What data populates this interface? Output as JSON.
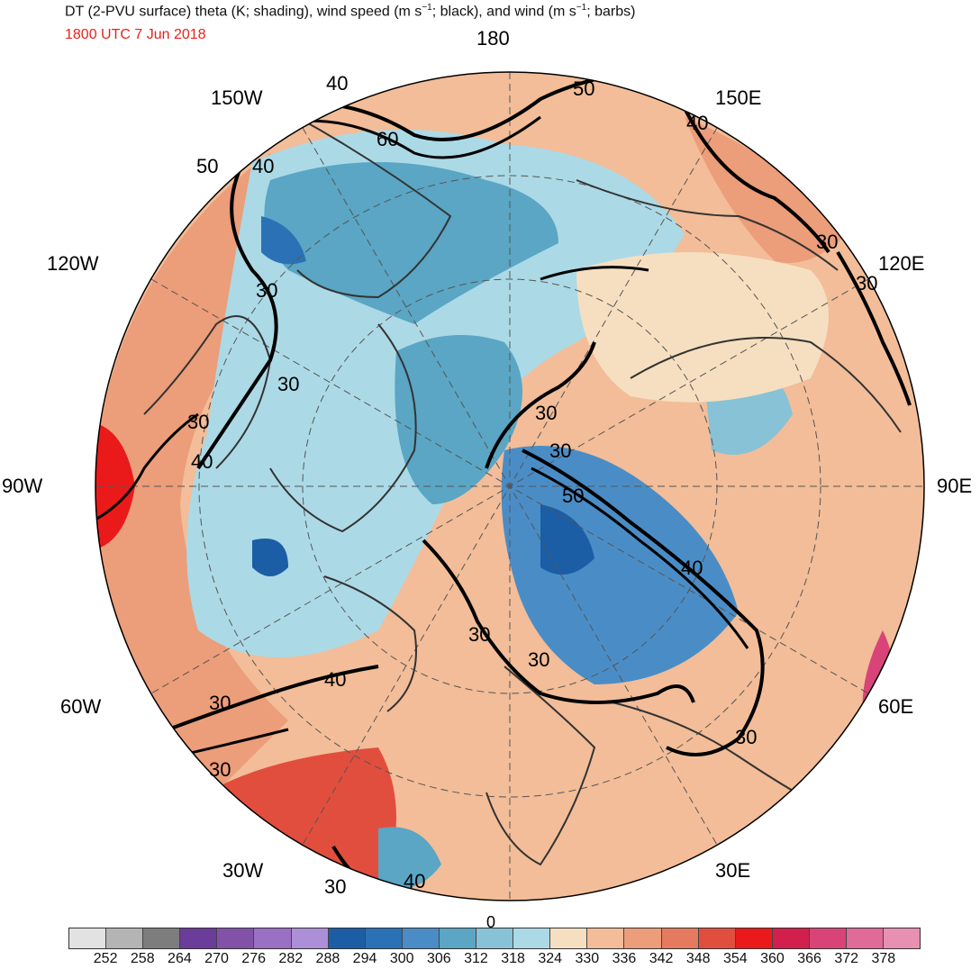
{
  "header": {
    "title_main": "DT (2-PVU surface) theta (K; shading), wind speed (m s",
    "title_exp1": "−1",
    "title_mid": "; black), and wind (m s",
    "title_exp2": "−1",
    "title_end": "; barbs)",
    "valid_time": "1800 UTC 7 Jun 2018",
    "valid_time_color": "#e8231a"
  },
  "map": {
    "projection": "north-polar-stereographic",
    "longitude_labels": [
      "180",
      "150E",
      "120E",
      "90E",
      "60E",
      "30E",
      "0",
      "30W",
      "60W",
      "90W",
      "120W",
      "150W"
    ],
    "contour_labels": [
      "40",
      "50",
      "60",
      "50",
      "40",
      "40",
      "30",
      "30",
      "30",
      "30",
      "40",
      "30",
      "30",
      "30",
      "50",
      "40",
      "30",
      "30",
      "40",
      "30",
      "30",
      "40",
      "30",
      "30",
      "30",
      "40"
    ],
    "colors": {
      "contour": "#000000",
      "coastline": "#333333",
      "grid": "#555555"
    }
  },
  "colorbar": {
    "colors": [
      "#e2e2e2",
      "#b4b4b4",
      "#7d7d7d",
      "#6a3d9a",
      "#8252a8",
      "#9a70c4",
      "#ad8fd8",
      "#1b5ea6",
      "#2a72b5",
      "#4a8dc6",
      "#5aa6c4",
      "#87c2d6",
      "#acd9e6",
      "#f6dfc0",
      "#f2bd98",
      "#ec9d7a",
      "#e67a5e",
      "#e24e3e",
      "#ea1a1a",
      "#d21f4c",
      "#d94478",
      "#e06a98",
      "#e790b2"
    ],
    "labels": [
      "252",
      "258",
      "264",
      "270",
      "276",
      "282",
      "288",
      "294",
      "300",
      "306",
      "312",
      "318",
      "324",
      "330",
      "336",
      "342",
      "348",
      "354",
      "360",
      "366",
      "372",
      "378"
    ]
  }
}
